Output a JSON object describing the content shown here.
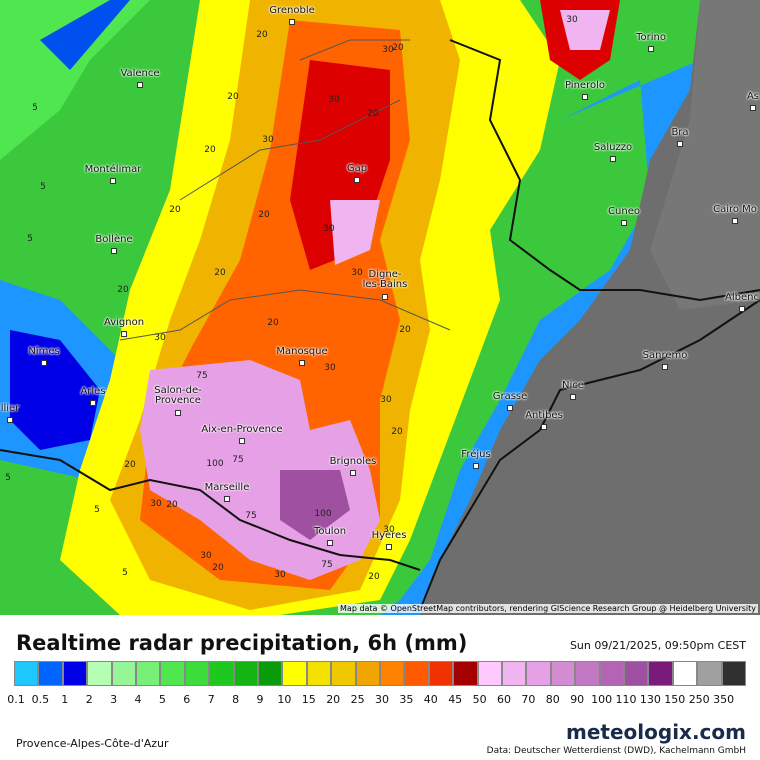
{
  "map": {
    "cities": [
      "Grenoble",
      "Valence",
      "Montélimar",
      "Bollène",
      "Avignon",
      "Nîmes",
      "Arles",
      "Salon-de-Provence",
      "Aix-en-Provence",
      "Marseille",
      "Toulon",
      "Hyères",
      "Brignoles",
      "Manosque",
      "Digne-les-Bains",
      "Gap",
      "Grasse",
      "Antibes",
      "Nice",
      "Fréjus",
      "Sanremo",
      "Cuneo",
      "Saluzzo",
      "Bra",
      "Pinerolo",
      "Torino",
      "Cairo Mo",
      "Albenc",
      "As",
      "llier"
    ],
    "contour_labels": [
      20,
      30,
      20,
      30,
      20,
      5,
      30,
      20,
      20,
      30,
      5,
      20,
      20,
      30,
      5,
      30,
      20,
      20,
      30,
      20,
      20,
      30,
      75,
      30,
      20,
      75,
      100,
      20,
      30,
      20,
      100,
      75,
      30,
      30,
      75,
      20,
      5,
      5,
      5,
      20,
      30
    ],
    "attribution": "Map data © OpenStreetMap contributors, rendering GIScience Research Group @ Heidelberg University"
  },
  "legend": {
    "title": "Realtime radar precipitation, 6h (mm)",
    "timestamp": "Sun 09/21/2025, 09:50pm CEST",
    "items": [
      {
        "value": 0.1,
        "color": "#1ec8ff"
      },
      {
        "value": 0.5,
        "color": "#0064ff"
      },
      {
        "value": 1,
        "color": "#0000e6"
      },
      {
        "value": 2,
        "color": "#b4ffb4"
      },
      {
        "value": 3,
        "color": "#96f596"
      },
      {
        "value": 4,
        "color": "#78f078"
      },
      {
        "value": 5,
        "color": "#50e650"
      },
      {
        "value": 6,
        "color": "#3cdc3c"
      },
      {
        "value": 7,
        "color": "#1ec81e"
      },
      {
        "value": 8,
        "color": "#14b414"
      },
      {
        "value": 9,
        "color": "#0a9b0a"
      },
      {
        "value": 10,
        "color": "#ffff00"
      },
      {
        "value": 15,
        "color": "#f5e100"
      },
      {
        "value": 20,
        "color": "#f0c800"
      },
      {
        "value": 25,
        "color": "#f0a500"
      },
      {
        "value": 30,
        "color": "#ff8200"
      },
      {
        "value": 35,
        "color": "#ff5a00"
      },
      {
        "value": 40,
        "color": "#f03200"
      },
      {
        "value": 45,
        "color": "#a50000"
      },
      {
        "value": 50,
        "color": "#ffc8ff"
      },
      {
        "value": 60,
        "color": "#f0b4f0"
      },
      {
        "value": 70,
        "color": "#e6a0e6"
      },
      {
        "value": 80,
        "color": "#d28cd2"
      },
      {
        "value": 90,
        "color": "#c378c3"
      },
      {
        "value": 100,
        "color": "#b464b4"
      },
      {
        "value": 110,
        "color": "#a050a0"
      },
      {
        "value": 130,
        "color": "#7a1a7a"
      },
      {
        "value": 150,
        "color": "#ffffff"
      },
      {
        "value": 250,
        "color": "#a0a0a0"
      },
      {
        "value": 350,
        "color": "#303030"
      }
    ]
  },
  "footer": {
    "brand": "meteologix.com",
    "region": "Provence-Alpes-Côte-d'Azur",
    "source": "Data: Deutscher Wetterdienst (DWD), Kachelmann GmbH"
  }
}
